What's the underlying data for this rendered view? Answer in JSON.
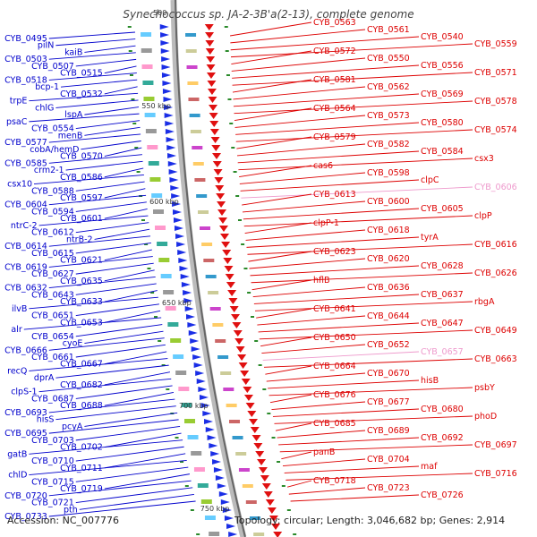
{
  "title": "Synechococcus sp. JA-2-3B'a(2-13), complete genome",
  "accession_label": "Accession: NC_007776",
  "summary_label": "Topology: circular; Length: 3,046,682 bp; Genes: 2,914",
  "colors": {
    "left": "#0000cc",
    "right": "#dd0000",
    "pink": "#ee99cc",
    "backbone": "#999999"
  },
  "scale_labels": [
    "500",
    "550 kbp",
    "600 kbp",
    "650 kbp",
    "700 kbp",
    "750 kbp"
  ],
  "left_labels": [
    "CYB_0495",
    "piIN",
    "kaiB",
    "CYB_0503",
    "CYB_0507",
    "CYB_0515",
    "CYB_0518",
    "bcp-1",
    "CYB_0532",
    "trpE",
    "chlG",
    "lspA",
    "psaC",
    "CYB_0554",
    "menB",
    "CYB_0577",
    "cobA/hemD",
    "CYB_0570",
    "CYB_0585",
    "crm2-1",
    "CYB_0586",
    "csx10",
    "CYB_0588",
    "CYB_0597",
    "CYB_0604",
    "CYB_0594",
    "CYB_0601",
    "ntrC-2",
    "CYB_0612",
    "ntrB-2",
    "CYB_0614",
    "CYB_0615",
    "CYB_0621",
    "CYB_0619",
    "CYB_0627",
    "CYB_0635",
    "CYB_0632",
    "CYB_0643",
    "CYB_0633",
    "ilvB",
    "CYB_0651",
    "CYB_0653",
    "alr",
    "CYB_0654",
    "cyoE",
    "CYB_0666",
    "CYB_0661",
    "CYB_0667",
    "recQ",
    "dprA",
    "CYB_0682",
    "clpS-1",
    "CYB_0687",
    "CYB_0688",
    "CYB_0693",
    "hisS",
    "pcyA",
    "CYB_0695",
    "CYB_0703",
    "CYB_0702",
    "gatB",
    "CYB_0710",
    "CYB_0711",
    "chlD",
    "CYB_0715",
    "CYB_0719",
    "CYB_0720",
    "CYB_0721",
    "pth",
    "CYB_0733"
  ],
  "right_labels": [
    "CYB_0563",
    "CYB_0561",
    "CYB_0540",
    "CYB_0559",
    "CYB_0572",
    "CYB_0550",
    "CYB_0556",
    "CYB_0571",
    "CYB_0581",
    "CYB_0562",
    "CYB_0569",
    "CYB_0578",
    "CYB_0564",
    "CYB_0573",
    "CYB_0580",
    "CYB_0574",
    "CYB_0579",
    "CYB_0582",
    "CYB_0584",
    "csx3",
    "cas6",
    "CYB_0598",
    "clpC",
    "CYB_0606",
    "CYB_0613",
    "CYB_0600",
    "CYB_0605",
    "clpP",
    "clpP-1",
    "CYB_0618",
    "tyrA",
    "CYB_0616",
    "CYB_0623",
    "CYB_0620",
    "CYB_0628",
    "CYB_0626",
    "hflB",
    "CYB_0636",
    "CYB_0637",
    "rbgA",
    "CYB_0641",
    "CYB_0644",
    "CYB_0647",
    "CYB_0649",
    "CYB_0650",
    "CYB_0652",
    "CYB_0657",
    "CYB_0663",
    "CYB_0664",
    "CYB_0670",
    "hisB",
    "psbY",
    "CYB_0676",
    "CYB_0677",
    "CYB_0680",
    "phoD",
    "CYB_0685",
    "CYB_0689",
    "CYB_0692",
    "CYB_0697",
    "panB",
    "CYB_0704",
    "maf",
    "CYB_0716",
    "CYB_0718",
    "CYB_0723",
    "CYB_0726"
  ]
}
